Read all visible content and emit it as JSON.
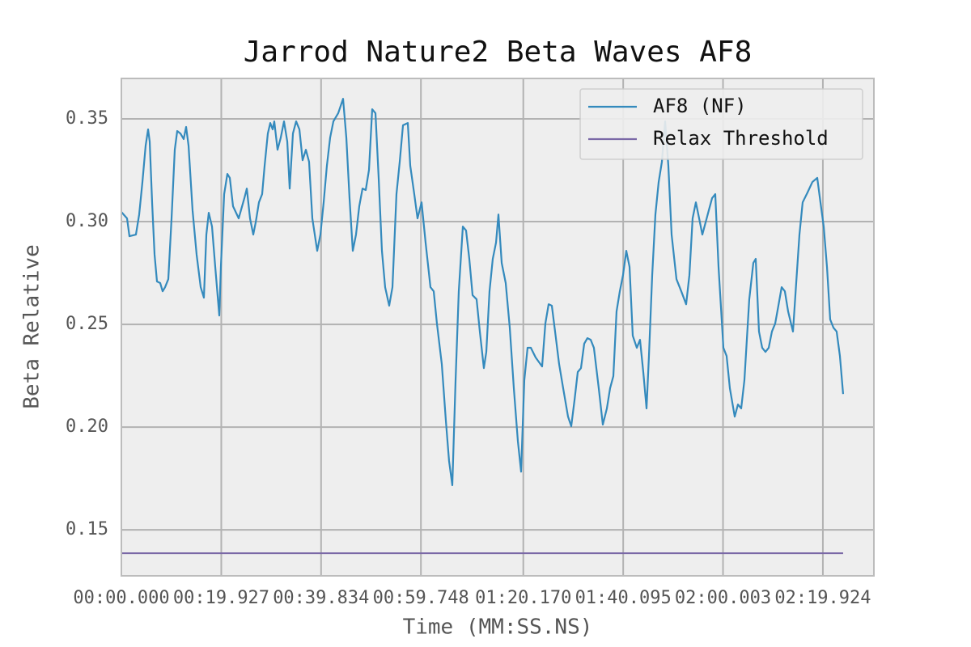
{
  "chart_data": {
    "type": "line",
    "title": "Jarrod Nature2 Beta Waves AF8",
    "xlabel": "Time (MM:SS.NS)",
    "ylabel": "Beta Relative",
    "xlim": [
      0,
      150.1
    ],
    "ylim": [
      0.1276,
      0.3697
    ],
    "xticks": [
      {
        "value": 0,
        "label": "00:00.000"
      },
      {
        "value": 19.927,
        "label": "00:19.927"
      },
      {
        "value": 39.834,
        "label": "00:39.834"
      },
      {
        "value": 59.748,
        "label": "00:59.748"
      },
      {
        "value": 80.17,
        "label": "01:20.170"
      },
      {
        "value": 100.095,
        "label": "01:40.095"
      },
      {
        "value": 120.003,
        "label": "02:00.003"
      },
      {
        "value": 139.924,
        "label": "02:19.924"
      }
    ],
    "yticks": [
      {
        "value": 0.15,
        "label": "0.15"
      },
      {
        "value": 0.2,
        "label": "0.20"
      },
      {
        "value": 0.25,
        "label": "0.25"
      },
      {
        "value": 0.3,
        "label": "0.30"
      },
      {
        "value": 0.35,
        "label": "0.35"
      }
    ],
    "grid": true,
    "legend": "upper right",
    "series": [
      {
        "name": "AF8 (NF)",
        "color": "#348abd",
        "x": [
          0,
          1.13,
          1.61,
          2.9,
          3.55,
          4.2,
          4.84,
          5.33,
          5.65,
          6.13,
          6.62,
          7.1,
          7.75,
          8.23,
          8.72,
          9.36,
          10.01,
          10.65,
          11.14,
          11.78,
          12.43,
          12.91,
          13.4,
          14.2,
          15.01,
          15.82,
          16.46,
          16.95,
          17.43,
          18.08,
          18.72,
          19.53,
          19.85,
          20.5,
          21.14,
          21.63,
          22.27,
          23.4,
          24.53,
          25.02,
          25.66,
          26.31,
          26.79,
          27.44,
          28.08,
          28.57,
          29.21,
          29.7,
          30.18,
          30.5,
          31.15,
          31.79,
          32.44,
          33.09,
          33.57,
          34.22,
          34.86,
          35.51,
          36.15,
          36.8,
          37.44,
          38.09,
          39.06,
          39.7,
          40.35,
          40.99,
          41.64,
          42.29,
          43.25,
          44.22,
          44.87,
          45.51,
          46.16,
          46.8,
          47.45,
          48.1,
          48.74,
          49.39,
          50.03,
          50.68,
          51.32,
          51.97,
          52.61,
          53.42,
          54.07,
          54.87,
          55.52,
          56.17,
          57.13,
          57.62,
          58.42,
          59.07,
          59.88,
          60.68,
          61.65,
          62.3,
          62.94,
          63.91,
          64.72,
          65.36,
          66.01,
          66.66,
          67.3,
          68.11,
          68.75,
          69.4,
          70.05,
          70.85,
          71.5,
          72.3,
          72.79,
          73.43,
          74.08,
          74.73,
          75.21,
          75.86,
          76.66,
          77.47,
          78.28,
          79.08,
          79.73,
          80.37,
          81.02,
          81.67,
          82.63,
          83.92,
          84.57,
          85.22,
          85.86,
          86.51,
          87.31,
          88.12,
          89.09,
          89.73,
          90.38,
          91.03,
          91.67,
          92.32,
          92.96,
          93.61,
          94.25,
          95.22,
          96.03,
          96.84,
          97.48,
          98.13,
          98.77,
          99.42,
          100.06,
          100.71,
          101.36,
          102,
          102.81,
          103.45,
          104.1,
          104.75,
          105.23,
          105.88,
          106.52,
          107.17,
          107.81,
          108.46,
          109.1,
          109.75,
          110.72,
          111.68,
          112.65,
          113.3,
          113.94,
          114.59,
          115.24,
          115.88,
          116.53,
          117.17,
          117.82,
          118.46,
          119.11,
          120.08,
          120.72,
          121.37,
          122.34,
          122.98,
          123.63,
          124.27,
          125.24,
          126.05,
          126.53,
          127.18,
          127.82,
          128.47,
          129.12,
          129.76,
          130.41,
          131.05,
          131.7,
          132.34,
          132.99,
          133.96,
          134.6,
          135.25,
          135.89,
          136.86,
          137.83,
          138.8,
          139.44,
          140.09,
          140.74,
          141.38,
          142.03,
          142.67,
          143.32,
          143.96
        ],
        "values": [
          0.3047,
          0.3016,
          0.2929,
          0.2937,
          0.3035,
          0.3193,
          0.337,
          0.3449,
          0.339,
          0.3094,
          0.2839,
          0.2709,
          0.2701,
          0.2661,
          0.2681,
          0.272,
          0.3016,
          0.335,
          0.3441,
          0.3429,
          0.3402,
          0.3461,
          0.337,
          0.3055,
          0.2839,
          0.2681,
          0.263,
          0.2937,
          0.3043,
          0.2976,
          0.278,
          0.2543,
          0.278,
          0.3134,
          0.3232,
          0.3213,
          0.3075,
          0.3016,
          0.3114,
          0.3161,
          0.3016,
          0.2937,
          0.2996,
          0.3094,
          0.3134,
          0.3272,
          0.3429,
          0.348,
          0.3449,
          0.3488,
          0.335,
          0.3409,
          0.3488,
          0.339,
          0.3161,
          0.3429,
          0.3488,
          0.3449,
          0.3299,
          0.335,
          0.3291,
          0.3016,
          0.2858,
          0.2937,
          0.3094,
          0.3272,
          0.3409,
          0.3488,
          0.3528,
          0.3598,
          0.3409,
          0.3114,
          0.2858,
          0.2937,
          0.3075,
          0.3161,
          0.3154,
          0.3252,
          0.3547,
          0.3528,
          0.3213,
          0.2858,
          0.2681,
          0.2591,
          0.2681,
          0.3134,
          0.3291,
          0.3469,
          0.348,
          0.3272,
          0.3134,
          0.3016,
          0.3094,
          0.2898,
          0.2681,
          0.2661,
          0.2504,
          0.2307,
          0.2032,
          0.1835,
          0.1717,
          0.2228,
          0.2661,
          0.2976,
          0.2957,
          0.2819,
          0.2642,
          0.2622,
          0.2465,
          0.2287,
          0.2366,
          0.2661,
          0.2819,
          0.2898,
          0.3035,
          0.2799,
          0.2701,
          0.2484,
          0.2189,
          0.1933,
          0.1783,
          0.2228,
          0.2386,
          0.2386,
          0.2339,
          0.2295,
          0.2504,
          0.2598,
          0.2591,
          0.2465,
          0.2307,
          0.2189,
          0.2051,
          0.2004,
          0.213,
          0.2268,
          0.2287,
          0.2406,
          0.2433,
          0.2425,
          0.2386,
          0.2189,
          0.2012,
          0.2091,
          0.2189,
          0.2248,
          0.2563,
          0.2661,
          0.274,
          0.2858,
          0.278,
          0.2445,
          0.2386,
          0.2425,
          0.2268,
          0.2091,
          0.2346,
          0.274,
          0.3035,
          0.3193,
          0.3291,
          0.3488,
          0.3272,
          0.2937,
          0.272,
          0.2661,
          0.2598,
          0.274,
          0.3016,
          0.3094,
          0.3016,
          0.2937,
          0.2996,
          0.3055,
          0.3114,
          0.3134,
          0.278,
          0.2386,
          0.2346,
          0.2189,
          0.2051,
          0.211,
          0.2091,
          0.2228,
          0.2622,
          0.2799,
          0.2819,
          0.2465,
          0.2386,
          0.2366,
          0.2386,
          0.2465,
          0.2504,
          0.2591,
          0.2681,
          0.2661,
          0.2563,
          0.2465,
          0.2701,
          0.2937,
          0.3094,
          0.3142,
          0.3193,
          0.3213,
          0.3094,
          0.2976,
          0.278,
          0.2524,
          0.2484,
          0.2465,
          0.2346,
          0.2161
        ]
      },
      {
        "name": "Relax Threshold",
        "color": "#7a68a6",
        "x": [
          0,
          143.96
        ],
        "values": [
          0.1386,
          0.1386
        ]
      }
    ]
  }
}
